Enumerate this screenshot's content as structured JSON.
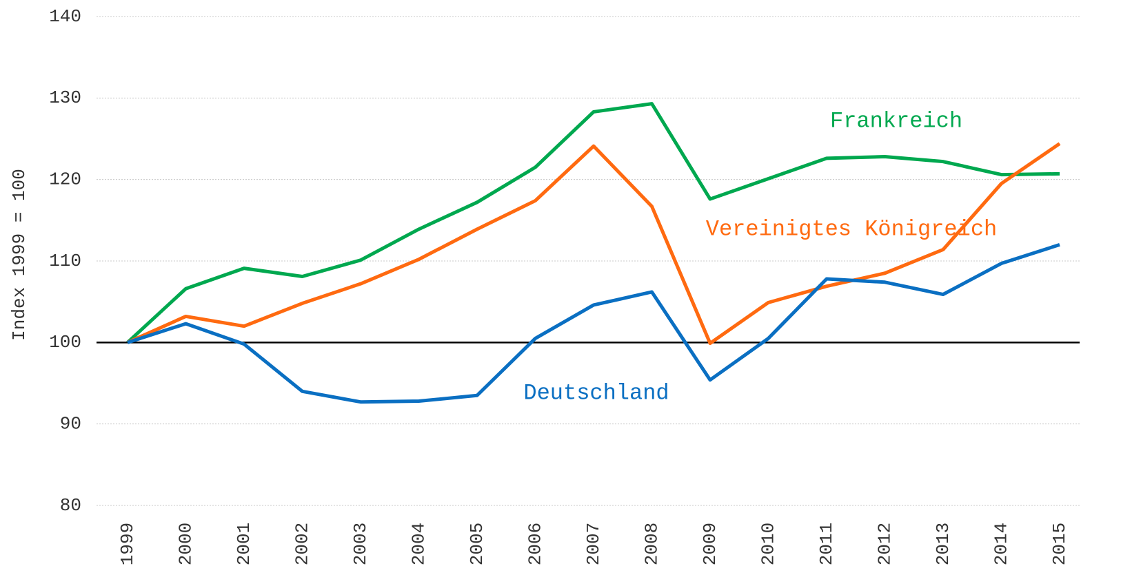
{
  "chart_data": {
    "type": "line",
    "y_label": "Index 1999 = 100",
    "categories": [
      "1999",
      "2000",
      "2001",
      "2002",
      "2003",
      "2004",
      "2005",
      "2006",
      "2007",
      "2008",
      "2009",
      "2010",
      "2011",
      "2012",
      "2013",
      "2014",
      "2015"
    ],
    "series": [
      {
        "name": "Frankreich",
        "color": "#00a84f",
        "values": [
          100,
          106.6,
          109.1,
          108.1,
          110.1,
          113.9,
          117.2,
          121.5,
          128.3,
          129.3,
          117.6,
          120.1,
          122.6,
          122.8,
          122.2,
          120.6,
          120.7
        ]
      },
      {
        "name": "Vereinigtes Königreich",
        "color": "#ff6a10",
        "values": [
          100,
          103.2,
          102.0,
          104.8,
          107.2,
          110.2,
          113.9,
          117.4,
          124.1,
          116.7,
          99.9,
          104.9,
          106.9,
          108.5,
          111.4,
          119.5,
          124.4
        ]
      },
      {
        "name": "Deutschland",
        "color": "#0a6fc2",
        "values": [
          100,
          102.3,
          99.8,
          94.0,
          92.7,
          92.8,
          93.5,
          100.5,
          104.6,
          106.2,
          95.4,
          100.5,
          107.8,
          107.4,
          105.9,
          109.7,
          112.0
        ]
      }
    ],
    "ylim": [
      80,
      140
    ],
    "yticks": [
      80,
      90,
      100,
      110,
      120,
      130,
      140
    ],
    "grid": true,
    "baseline": 100
  }
}
